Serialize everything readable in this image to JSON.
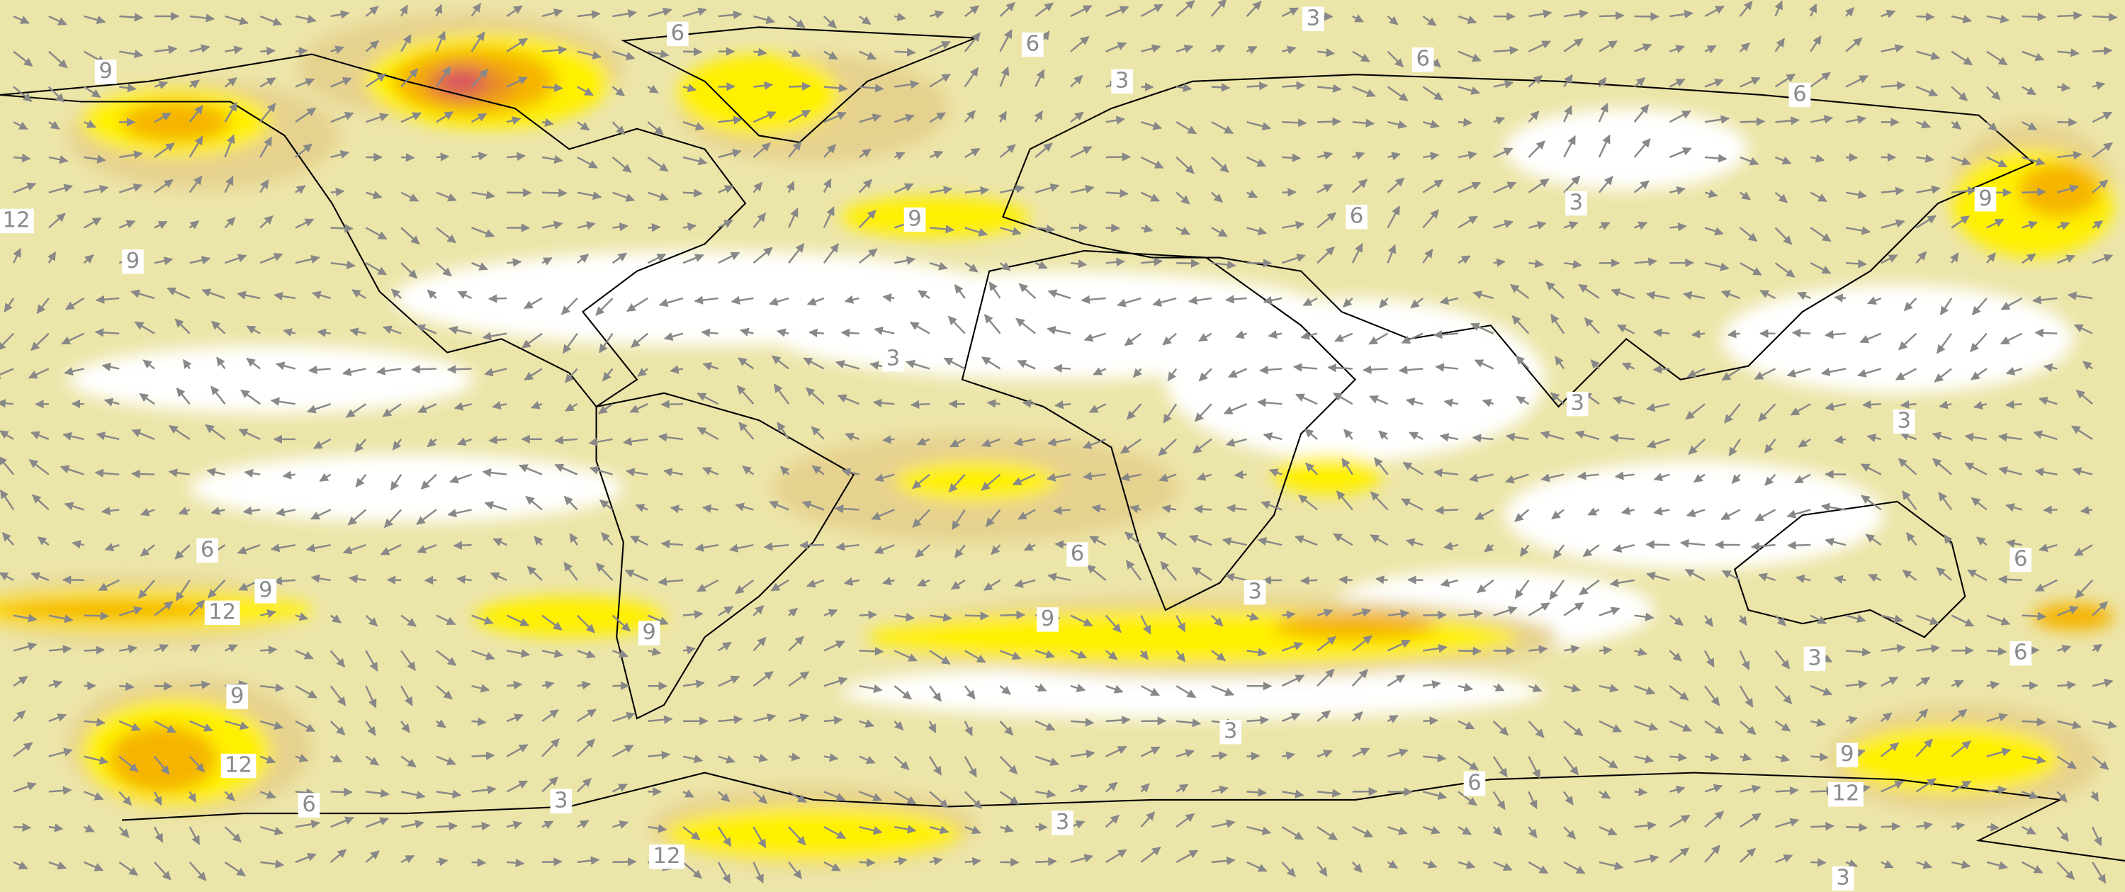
{
  "contour_labels": [
    9,
    12,
    9,
    6,
    6,
    3,
    3,
    6,
    6,
    9,
    6,
    3,
    9,
    3,
    3,
    3,
    6,
    9,
    12,
    6,
    3,
    9,
    9,
    6,
    3,
    6,
    9,
    12,
    3,
    9,
    12,
    6,
    3,
    6,
    3,
    12,
    3
  ]
}
